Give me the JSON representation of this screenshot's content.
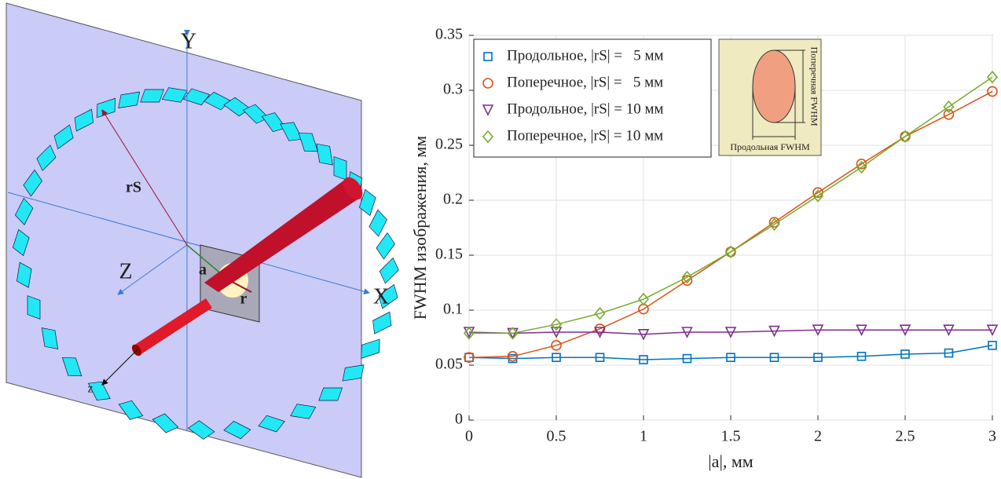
{
  "diagram": {
    "labels": [
      "Y",
      "X",
      "Z",
      "z",
      "rS",
      "a",
      "r"
    ]
  },
  "chart_data": {
    "type": "line",
    "x_label": "|a|, мм",
    "y_label": "FWHM изображения, мм",
    "x": [
      0,
      0.25,
      0.5,
      0.75,
      1,
      1.25,
      1.5,
      1.75,
      2,
      2.25,
      2.5,
      2.75,
      3
    ],
    "series": [
      {
        "name": "Продольное, |rS| =   5 мм",
        "color": "#0072bd",
        "marker": "square",
        "values": [
          0.057,
          0.056,
          0.057,
          0.057,
          0.055,
          0.056,
          0.057,
          0.057,
          0.057,
          0.058,
          0.06,
          0.061,
          0.068
        ]
      },
      {
        "name": "Поперечное, |rS| =   5 мм",
        "color": "#d95319",
        "marker": "circle",
        "values": [
          0.057,
          0.058,
          0.068,
          0.083,
          0.101,
          0.127,
          0.153,
          0.18,
          0.207,
          0.233,
          0.258,
          0.278,
          0.299
        ]
      },
      {
        "name": "Продольное, |rS| = 10 мм",
        "color": "#7e2f8e",
        "marker": "triangle-down",
        "values": [
          0.08,
          0.079,
          0.08,
          0.08,
          0.078,
          0.08,
          0.08,
          0.081,
          0.082,
          0.082,
          0.082,
          0.082,
          0.082
        ]
      },
      {
        "name": "Поперечное, |rS| = 10 мм",
        "color": "#77ac30",
        "marker": "diamond",
        "values": [
          0.079,
          0.079,
          0.087,
          0.097,
          0.11,
          0.13,
          0.153,
          0.178,
          0.204,
          0.23,
          0.258,
          0.285,
          0.312
        ]
      }
    ],
    "xlim": [
      0,
      3
    ],
    "xticks": [
      0,
      0.5,
      1,
      1.5,
      2,
      2.5,
      3
    ],
    "ylim": [
      0,
      0.35
    ],
    "yticks": [
      0,
      0.05,
      0.1,
      0.15,
      0.2,
      0.25,
      0.3,
      0.35
    ],
    "grid": true,
    "legend": "upper left",
    "inset": {
      "vertical_label": "Поперечная FWHM",
      "horizontal_label": "Продольная FWHM"
    }
  }
}
